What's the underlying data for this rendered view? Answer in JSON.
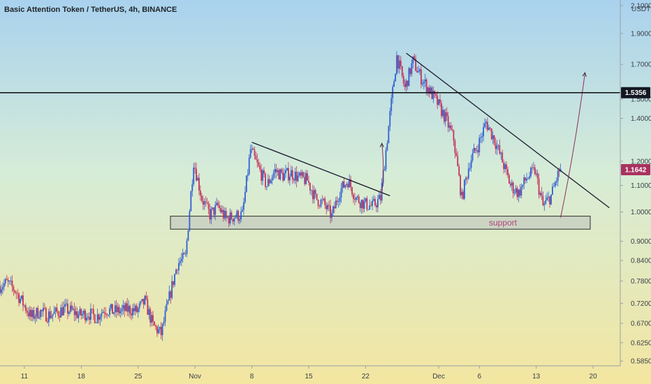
{
  "title": "Basic Attention Token / TetherUS, 4h, BINANCE",
  "chart_data": {
    "type": "candlestick",
    "unit": "USDT",
    "y_scale": "log",
    "ylim": [
      0.57,
      2.1
    ],
    "y_ticks": [
      {
        "value": 2.1,
        "label": "2.1000"
      },
      {
        "value": 1.9,
        "label": "1.9000"
      },
      {
        "value": 1.7,
        "label": "1.7000"
      },
      {
        "value": 1.5,
        "label": "1.5000"
      },
      {
        "value": 1.4,
        "label": "1.4000"
      },
      {
        "value": 1.2,
        "label": "1.2000"
      },
      {
        "value": 1.1,
        "label": "1.1000"
      },
      {
        "value": 1.0,
        "label": "1.0000"
      },
      {
        "value": 0.9,
        "label": "0.9000"
      },
      {
        "value": 0.84,
        "label": "0.8400"
      },
      {
        "value": 0.78,
        "label": "0.7800"
      },
      {
        "value": 0.72,
        "label": "0.7200"
      },
      {
        "value": 0.67,
        "label": "0.6700"
      },
      {
        "value": 0.625,
        "label": "0.6250"
      },
      {
        "value": 0.585,
        "label": "0.5850"
      }
    ],
    "x_start": "2021-10-08",
    "x_end": "2021-12-23",
    "x_ticks": [
      {
        "date": "2021-10-11",
        "label": "11"
      },
      {
        "date": "2021-10-18",
        "label": "18"
      },
      {
        "date": "2021-10-25",
        "label": "25"
      },
      {
        "date": "2021-11-01",
        "label": "Nov"
      },
      {
        "date": "2021-11-08",
        "label": "8"
      },
      {
        "date": "2021-11-15",
        "label": "15"
      },
      {
        "date": "2021-11-22",
        "label": "22"
      },
      {
        "date": "2021-12-01",
        "label": "Dec"
      },
      {
        "date": "2021-12-06",
        "label": "6"
      },
      {
        "date": "2021-12-13",
        "label": "13"
      },
      {
        "date": "2021-12-20",
        "label": "20"
      }
    ],
    "grid": false,
    "price_path": [
      [
        "2021-10-08",
        0.765
      ],
      [
        "2021-10-09",
        0.775
      ],
      [
        "2021-10-10",
        0.755
      ],
      [
        "2021-10-11",
        0.72
      ],
      [
        "2021-10-12",
        0.685
      ],
      [
        "2021-10-13",
        0.7
      ],
      [
        "2021-10-14",
        0.69
      ],
      [
        "2021-10-15",
        0.695
      ],
      [
        "2021-10-16",
        0.705
      ],
      [
        "2021-10-17",
        0.7
      ],
      [
        "2021-10-18",
        0.69
      ],
      [
        "2021-10-19",
        0.695
      ],
      [
        "2021-10-20",
        0.685
      ],
      [
        "2021-10-21",
        0.705
      ],
      [
        "2021-10-22",
        0.7
      ],
      [
        "2021-10-23",
        0.7
      ],
      [
        "2021-10-24",
        0.705
      ],
      [
        "2021-10-25",
        0.7
      ],
      [
        "2021-10-26",
        0.725
      ],
      [
        "2021-10-27",
        0.665
      ],
      [
        "2021-10-28",
        0.645
      ],
      [
        "2021-10-29",
        0.735
      ],
      [
        "2021-10-30",
        0.83
      ],
      [
        "2021-10-31",
        0.85
      ],
      [
        "2021-11-01",
        1.2
      ],
      [
        "2021-11-02",
        1.05
      ],
      [
        "2021-11-03",
        0.99
      ],
      [
        "2021-11-04",
        1.02
      ],
      [
        "2021-11-05",
        0.975
      ],
      [
        "2021-11-06",
        0.985
      ],
      [
        "2021-11-07",
        0.99
      ],
      [
        "2021-11-08",
        1.25
      ],
      [
        "2021-11-09",
        1.17
      ],
      [
        "2021-11-10",
        1.1
      ],
      [
        "2021-11-11",
        1.16
      ],
      [
        "2021-11-12",
        1.14
      ],
      [
        "2021-11-13",
        1.15
      ],
      [
        "2021-11-14",
        1.13
      ],
      [
        "2021-11-15",
        1.12
      ],
      [
        "2021-11-16",
        1.05
      ],
      [
        "2021-11-17",
        1.03
      ],
      [
        "2021-11-18",
        0.985
      ],
      [
        "2021-11-19",
        1.08
      ],
      [
        "2021-11-20",
        1.12
      ],
      [
        "2021-11-21",
        1.05
      ],
      [
        "2021-11-22",
        1.03
      ],
      [
        "2021-11-23",
        1.02
      ],
      [
        "2021-11-24",
        1.05
      ],
      [
        "2021-11-25",
        1.36
      ],
      [
        "2021-11-26",
        1.75
      ],
      [
        "2021-11-27",
        1.56
      ],
      [
        "2021-11-28",
        1.72
      ],
      [
        "2021-11-29",
        1.62
      ],
      [
        "2021-11-30",
        1.55
      ],
      [
        "2021-12-01",
        1.48
      ],
      [
        "2021-12-02",
        1.4
      ],
      [
        "2021-12-03",
        1.3
      ],
      [
        "2021-12-04",
        1.05
      ],
      [
        "2021-12-05",
        1.2
      ],
      [
        "2021-12-06",
        1.27
      ],
      [
        "2021-12-07",
        1.38
      ],
      [
        "2021-12-08",
        1.3
      ],
      [
        "2021-12-09",
        1.2
      ],
      [
        "2021-12-10",
        1.1
      ],
      [
        "2021-12-11",
        1.07
      ],
      [
        "2021-12-12",
        1.13
      ],
      [
        "2021-12-13",
        1.16
      ],
      [
        "2021-12-14",
        1.02
      ],
      [
        "2021-12-15",
        1.06
      ],
      [
        "2021-12-16",
        1.16
      ]
    ],
    "support_zone": {
      "label": "support",
      "from": "2021-11-01",
      "to": "2021-12-23",
      "low": 0.94,
      "high": 0.985
    },
    "horizontal_level": {
      "value": 1.5356,
      "label": "1.5356"
    },
    "last_price": {
      "value": 1.1642,
      "label": "1.1642"
    },
    "trendlines": [
      {
        "from": [
          "2021-11-08",
          1.285
        ],
        "to": [
          "2021-11-25",
          1.06
        ]
      },
      {
        "from": [
          "2021-11-27",
          1.77
        ],
        "to": [
          "2021-12-22",
          1.015
        ]
      }
    ],
    "arrows": [
      {
        "from": [
          "2021-11-24",
          1.07
        ],
        "to": [
          "2021-11-24",
          1.28
        ]
      },
      {
        "from": [
          "2021-12-16",
          0.98
        ],
        "to": [
          "2021-12-19",
          1.65
        ]
      }
    ],
    "colors": {
      "up": "#2f5fd0",
      "down": "#c4325a",
      "level_line": "#0d0d0d",
      "trendline": "#1a1a2e",
      "tag_dark_bg": "#131722",
      "tag_last_bg": "#a8325f",
      "zone_fill": "#c8d0c2",
      "zone_border": "#2b2b2b",
      "annotation": "#b0447a"
    }
  }
}
